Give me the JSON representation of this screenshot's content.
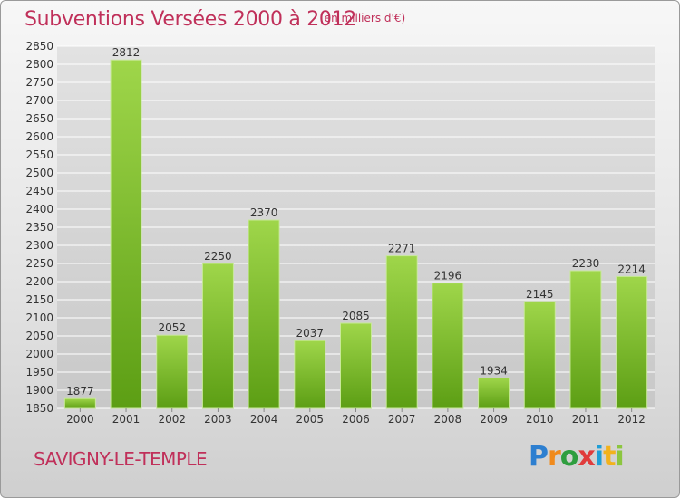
{
  "title": "Subventions Versées 2000 à 2012",
  "subtitle": "(en milliers d'€)",
  "commune": "SAVIGNY-LE-TEMPLE",
  "logo": "Proxiti",
  "colors": {
    "title": "#c0305a",
    "bar_top": "#9fd64a",
    "bar_bottom": "#5c9e14",
    "grid": "#ffffff"
  },
  "chart_data": {
    "type": "bar",
    "title": "Subventions Versées 2000 à 2012",
    "subtitle": "(en milliers d'€)",
    "xlabel": "",
    "ylabel": "",
    "categories": [
      "2000",
      "2001",
      "2002",
      "2003",
      "2004",
      "2005",
      "2006",
      "2007",
      "2008",
      "2009",
      "2010",
      "2011",
      "2012"
    ],
    "values": [
      1877,
      2812,
      2052,
      2250,
      2370,
      2037,
      2085,
      2271,
      2196,
      1934,
      2145,
      2230,
      2214
    ],
    "ylim": [
      1850,
      2850
    ],
    "ytick_step": 50,
    "grid": true,
    "legend": "none"
  }
}
